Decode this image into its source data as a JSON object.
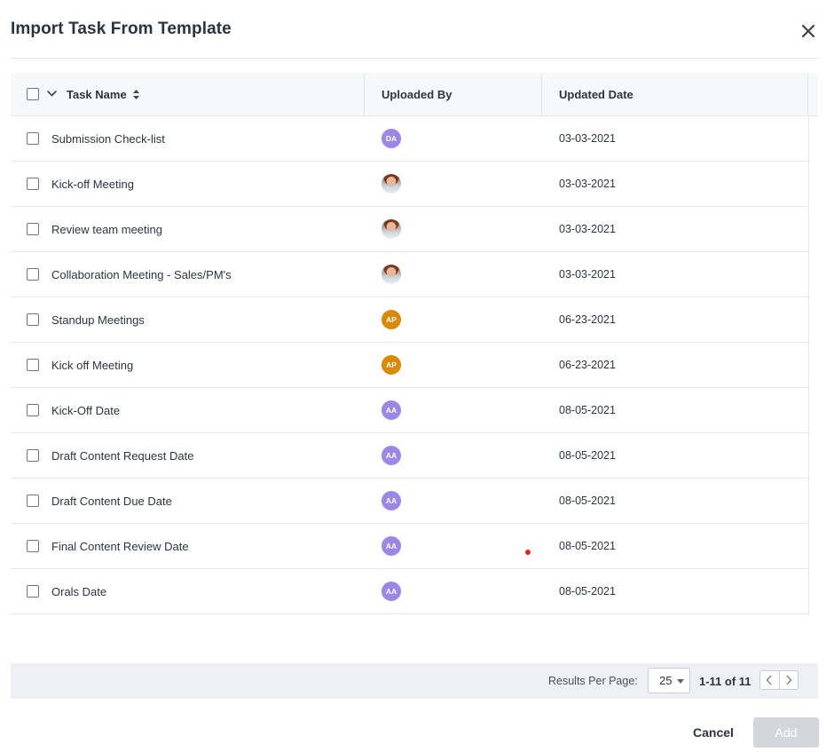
{
  "dialog": {
    "title": "Import Task From Template",
    "close_icon": "close-icon"
  },
  "table": {
    "columns": {
      "task_name": "Task Name",
      "uploaded_by": "Uploaded By",
      "updated_date": "Updated Date"
    },
    "rows": [
      {
        "name": "Submission Check-list",
        "uploader": {
          "type": "initials",
          "initials": "DA",
          "color": "#9b87e6"
        },
        "date": "03-03-2021"
      },
      {
        "name": "Kick-off Meeting",
        "uploader": {
          "type": "photo",
          "initials": ""
        },
        "date": "03-03-2021"
      },
      {
        "name": "Review team meeting",
        "uploader": {
          "type": "photo",
          "initials": ""
        },
        "date": "03-03-2021"
      },
      {
        "name": "Collaboration Meeting - Sales/PM's",
        "uploader": {
          "type": "photo",
          "initials": ""
        },
        "date": "03-03-2021"
      },
      {
        "name": "Standup Meetings",
        "uploader": {
          "type": "initials",
          "initials": "AP",
          "color": "#d98a06"
        },
        "date": "06-23-2021"
      },
      {
        "name": "Kick off Meeting",
        "uploader": {
          "type": "initials",
          "initials": "AP",
          "color": "#d98a06"
        },
        "date": "06-23-2021"
      },
      {
        "name": "Kick-Off Date",
        "uploader": {
          "type": "initials",
          "initials": "AA",
          "color": "#9b87e6"
        },
        "date": "08-05-2021"
      },
      {
        "name": "Draft Content Request Date",
        "uploader": {
          "type": "initials",
          "initials": "AA",
          "color": "#9b87e6"
        },
        "date": "08-05-2021"
      },
      {
        "name": "Draft Content Due Date",
        "uploader": {
          "type": "initials",
          "initials": "AA",
          "color": "#9b87e6"
        },
        "date": "08-05-2021"
      },
      {
        "name": "Final Content Review Date",
        "uploader": {
          "type": "initials",
          "initials": "AA",
          "color": "#9b87e6"
        },
        "date": "08-05-2021"
      },
      {
        "name": "Orals Date",
        "uploader": {
          "type": "initials",
          "initials": "AA",
          "color": "#9b87e6"
        },
        "date": "08-05-2021"
      }
    ]
  },
  "pagination": {
    "results_per_page_label": "Results Per Page:",
    "results_per_page_value": "25",
    "range": "1-11 of 11"
  },
  "actions": {
    "cancel_label": "Cancel",
    "add_label": "Add"
  },
  "colors": {
    "avatar_purple": "#9b87e6",
    "avatar_orange": "#d98a06",
    "marker_red": "#e0271f",
    "add_disabled": "#d3d6db"
  }
}
